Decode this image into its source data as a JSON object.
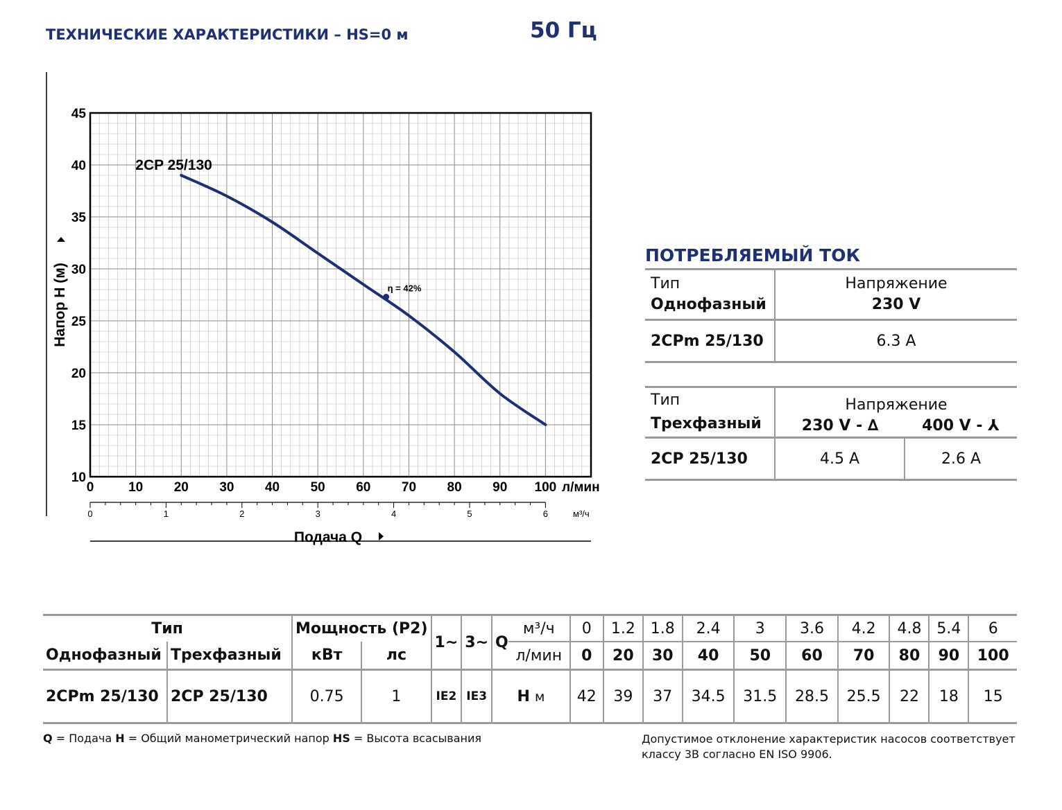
{
  "header": {
    "title": "ТЕХНИЧЕСКИЕ ХАРАКТЕРИСТИКИ – HS=0 м",
    "frequency": "50 Гц"
  },
  "chart_data": {
    "type": "line",
    "ylabel": "Напор H  (м)",
    "xlabel": "Подача Q",
    "x_unit": "л/мин",
    "x2_unit": "м³/ч",
    "xlim": [
      0,
      110
    ],
    "ylim": [
      10,
      45
    ],
    "xticks": [
      0,
      10,
      20,
      30,
      40,
      50,
      60,
      70,
      80,
      90,
      100
    ],
    "yticks": [
      10,
      15,
      20,
      25,
      30,
      35,
      40,
      45
    ],
    "x2ticks": [
      0,
      1,
      2,
      3,
      4,
      5,
      6
    ],
    "grid": true,
    "series": [
      {
        "name": "2CP 25/130",
        "x": [
          20,
          30,
          40,
          50,
          60,
          70,
          80,
          90,
          100
        ],
        "y": [
          39,
          37,
          34.5,
          31.5,
          28.5,
          25.5,
          22,
          18,
          15
        ]
      }
    ],
    "annotation": {
      "text": "η = 42%",
      "x": 65,
      "y": 27.3
    },
    "colors": {
      "curve": "#1e2f73",
      "grid": "#bdbdbd"
    }
  },
  "current": {
    "title": "ПОТРЕБЛЯЕМЫЙ ТОК",
    "single": {
      "type_label": "Тип",
      "phase_label": "Однофазный",
      "voltage_label": "Напряжение",
      "voltage": "230 V",
      "model": "2CPm 25/130",
      "current": "6.3 A"
    },
    "three": {
      "type_label": "Тип",
      "phase_label": "Трехфазный",
      "voltage_label": "Напряжение",
      "voltage1": "230 V - ∆",
      "voltage2": "400 V - ⅄",
      "model": "2CP 25/130",
      "current1": "4.5 A",
      "current2": "2.6 A"
    }
  },
  "spec": {
    "type_label": "Тип",
    "single_label": "Однофазный",
    "three_label": "Трехфазный",
    "power_label": "Мощность (P2)",
    "kw_label": "кВт",
    "hp_label": "лс",
    "phase1": "1~",
    "phase3": "3~",
    "q_label": "Q",
    "unit_m3h": "м³/ч",
    "unit_lmin": "л/мин",
    "h_label": "H",
    "h_unit": "м",
    "m3h": [
      "0",
      "1.2",
      "1.8",
      "2.4",
      "3",
      "3.6",
      "4.2",
      "4.8",
      "5.4",
      "6"
    ],
    "lmin": [
      "0",
      "20",
      "30",
      "40",
      "50",
      "60",
      "70",
      "80",
      "90",
      "100"
    ],
    "row": {
      "single_model": "2CPm 25/130",
      "three_model": "2CP 25/130",
      "kw": "0.75",
      "hp": "1",
      "ie1": "IE2",
      "ie3": "IE3",
      "h": [
        "42",
        "39",
        "37",
        "34.5",
        "31.5",
        "28.5",
        "25.5",
        "22",
        "18",
        "15"
      ]
    }
  },
  "footer": {
    "legend": {
      "q_key": "Q",
      "q_text": " = Подача ",
      "h_key": "H",
      "h_text": " = Общий манометрический напор  ",
      "hs_key": "HS",
      "hs_text": " = Высота всасывания"
    },
    "tolerance": "Допустимое отклонение характеристик насосов соответствует классу 3B согласно EN ISO 9906."
  }
}
